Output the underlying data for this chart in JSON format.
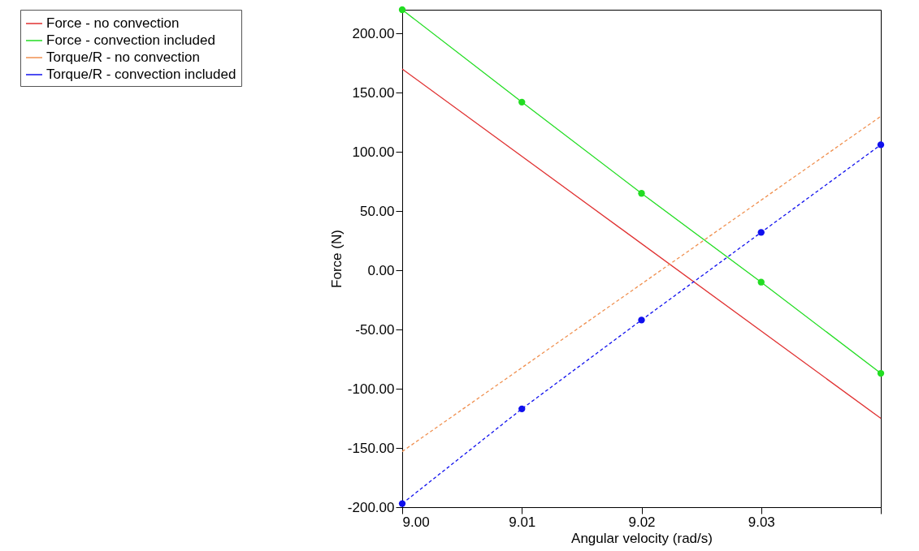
{
  "chart_data": {
    "type": "line",
    "xlabel": "Angular velocity (rad/s)",
    "ylabel": "Force (N)",
    "xlim": [
      9.0,
      9.04
    ],
    "ylim": [
      -200,
      220
    ],
    "xticks": [
      {
        "value": 9.0,
        "label": "9.00"
      },
      {
        "value": 9.01,
        "label": "9.01"
      },
      {
        "value": 9.02,
        "label": "9.02"
      },
      {
        "value": 9.03,
        "label": "9.03"
      },
      {
        "value": 9.04,
        "label": null
      }
    ],
    "yticks": [
      {
        "value": -200,
        "label": "-200.00"
      },
      {
        "value": -150,
        "label": "-150.00"
      },
      {
        "value": -100,
        "label": "-100.00"
      },
      {
        "value": -50,
        "label": "-50.00"
      },
      {
        "value": 0,
        "label": "0.00"
      },
      {
        "value": 50,
        "label": "50.00"
      },
      {
        "value": 100,
        "label": "100.00"
      },
      {
        "value": 150,
        "label": "150.00"
      },
      {
        "value": 200,
        "label": "200.00"
      }
    ],
    "grid": false,
    "legend": "top left",
    "series": [
      {
        "name": "Force - no convection",
        "color": "#e03030",
        "x": [
          9.0,
          9.04
        ],
        "values": [
          170,
          -125
        ],
        "marker": "none",
        "line_style": "solid"
      },
      {
        "name": "Force - convection included",
        "color": "#22dd22",
        "x": [
          9.0,
          9.01,
          9.02,
          9.03,
          9.04
        ],
        "values": [
          220,
          142,
          65,
          -10,
          -87
        ],
        "marker": "circle",
        "line_style": "solid"
      },
      {
        "name": "Torque/R - no convection",
        "color": "#f09050",
        "x": [
          9.0,
          9.04
        ],
        "values": [
          -153,
          130
        ],
        "marker": "none",
        "line_style": "dashed"
      },
      {
        "name": "Torque/R - convection included",
        "color": "#1010ee",
        "x": [
          9.0,
          9.01,
          9.02,
          9.03,
          9.04
        ],
        "values": [
          -197,
          -117,
          -42,
          32,
          106
        ],
        "marker": "circle",
        "line_style": "dashed"
      }
    ]
  }
}
